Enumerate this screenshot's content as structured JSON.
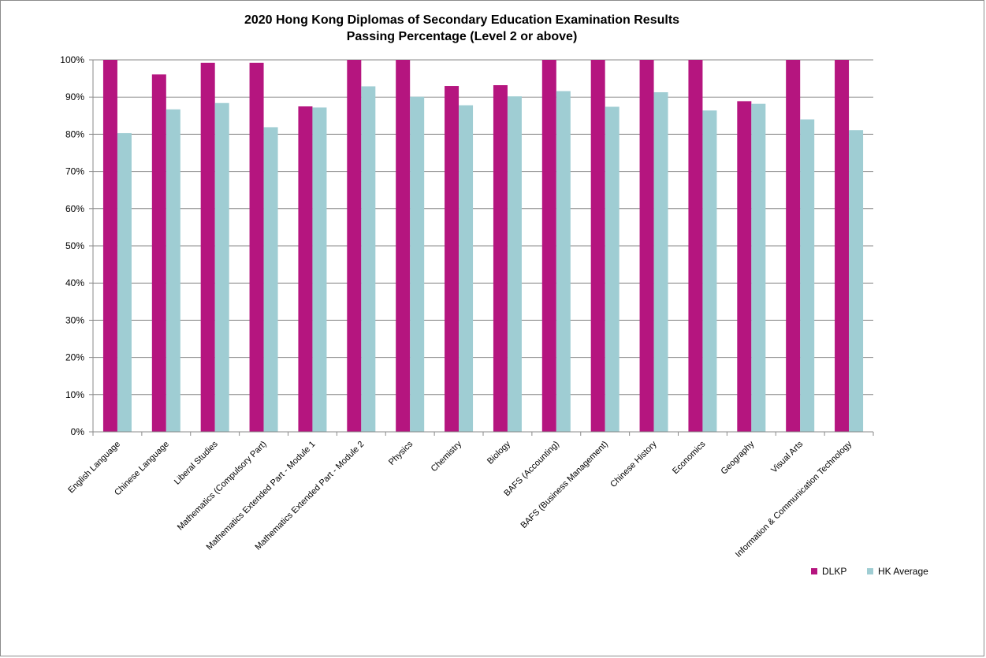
{
  "chart_data": {
    "type": "bar",
    "title": "2020 Hong Kong Diplomas of Secondary Education Examination Results",
    "subtitle": "Passing Percentage (Level 2 or above)",
    "ylim": [
      0,
      100
    ],
    "y_ticks": [
      "0%",
      "10%",
      "20%",
      "30%",
      "40%",
      "50%",
      "60%",
      "70%",
      "80%",
      "90%",
      "100%"
    ],
    "grid": true,
    "legend_position": "bottom-right",
    "categories": [
      "English Language",
      "Chinese Language",
      "Liberal Studies",
      "Mathematics (Compulsory Part)",
      "Mathematics Extended Part - Module 1",
      "Mathematics Extended Part - Module 2",
      "Physics",
      "Chemistry",
      "Biology",
      "BAFS (Accounting)",
      "BAFS (Business Management)",
      "Chinese History",
      "Economics",
      "Geography",
      "Visual Arts",
      "Information & Communication Technology"
    ],
    "series": [
      {
        "name": "DLKP",
        "color": "#b5157f",
        "values": [
          100,
          96.1,
          99.2,
          99.2,
          87.5,
          100,
          100,
          93.0,
          93.2,
          100,
          100,
          100,
          100,
          88.9,
          100,
          100
        ]
      },
      {
        "name": "HK Average",
        "color": "#9fcdd3",
        "values": [
          80.3,
          86.7,
          88.4,
          81.9,
          87.2,
          92.9,
          90.1,
          87.8,
          90.2,
          91.6,
          87.4,
          91.3,
          86.4,
          88.2,
          84.0,
          81.1
        ]
      }
    ]
  }
}
